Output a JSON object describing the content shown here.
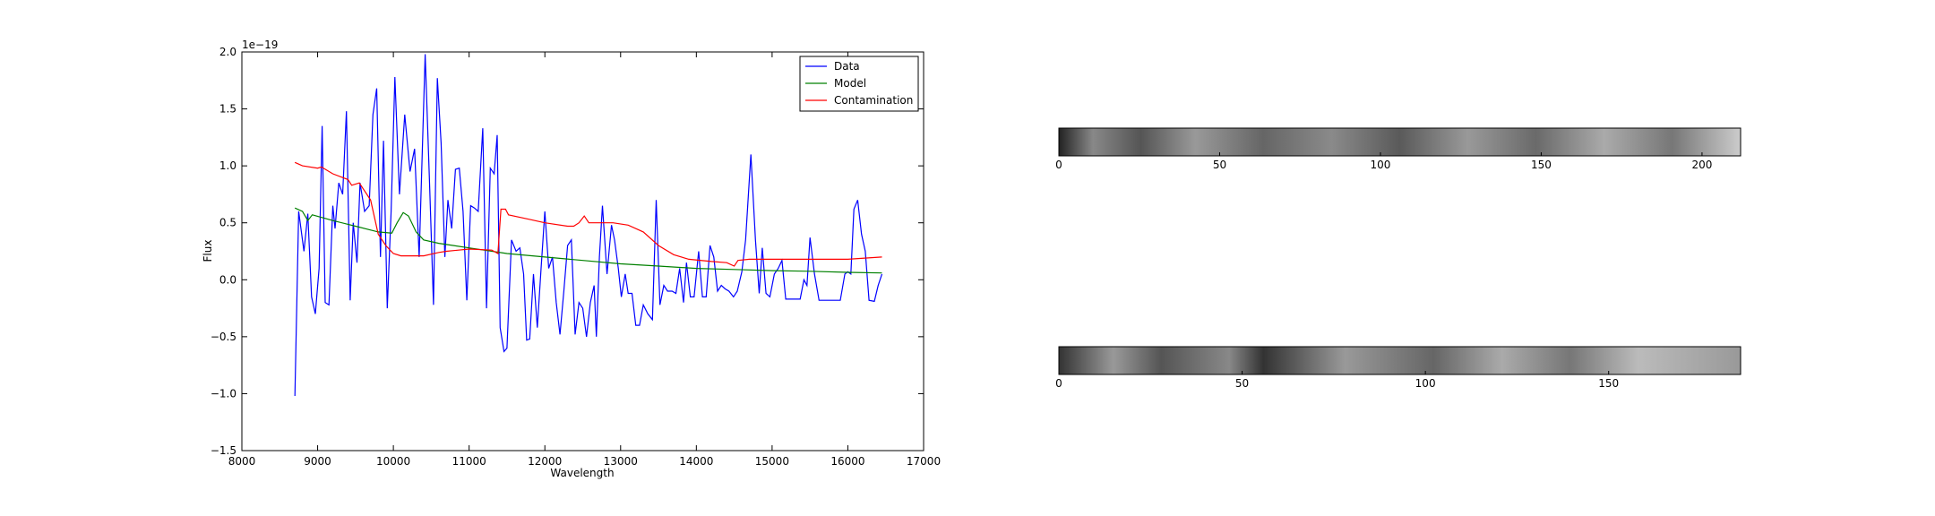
{
  "chart_data": [
    {
      "type": "line",
      "xlabel": "Wavelength",
      "ylabel": "Flux",
      "offset_label": "1e−19",
      "xlim": [
        8000,
        17000
      ],
      "xticks": [
        8000,
        9000,
        10000,
        11000,
        12000,
        13000,
        14000,
        15000,
        16000,
        17000
      ],
      "ylim": [
        -1.5,
        2.0
      ],
      "yticks": [
        {
          "value": -1.5,
          "label": "−1.5"
        },
        {
          "value": -1.0,
          "label": "−1.0"
        },
        {
          "value": -0.5,
          "label": "−0.5"
        },
        {
          "value": 0,
          "label": "0.0"
        },
        {
          "value": 0.5,
          "label": "0.5"
        },
        {
          "value": 1.0,
          "label": "1.0"
        },
        {
          "value": 1.5,
          "label": "1.5"
        },
        {
          "value": 2.0,
          "label": "2.0"
        }
      ],
      "legend": "upper right",
      "series": [
        {
          "name": "Data",
          "color": "#0000ff",
          "x": [
            8700,
            8750,
            8820,
            8870,
            8920,
            8970,
            9020,
            9060,
            9100,
            9150,
            9200,
            9230,
            9280,
            9330,
            9380,
            9430,
            9470,
            9520,
            9560,
            9620,
            9680,
            9730,
            9780,
            9830,
            9870,
            9920,
            9970,
            10020,
            10080,
            10150,
            10220,
            10280,
            10340,
            10420,
            10480,
            10530,
            10580,
            10630,
            10680,
            10720,
            10770,
            10820,
            10870,
            10920,
            10970,
            11020,
            11070,
            11120,
            11180,
            11230,
            11280,
            11330,
            11370,
            11410,
            11460,
            11500,
            11560,
            11620,
            11670,
            11720,
            11760,
            11800,
            11850,
            11900,
            11950,
            12000,
            12050,
            12100,
            12150,
            12200,
            12250,
            12300,
            12350,
            12400,
            12450,
            12500,
            12550,
            12600,
            12650,
            12680,
            12720,
            12760,
            12820,
            12880,
            12920,
            12970,
            13010,
            13060,
            13100,
            13150,
            13200,
            13250,
            13300,
            13360,
            13420,
            13470,
            13520,
            13570,
            13620,
            13680,
            13730,
            13780,
            13830,
            13870,
            13920,
            13970,
            14030,
            14080,
            14130,
            14180,
            14230,
            14280,
            14330,
            14380,
            14430,
            14490,
            14540,
            14600,
            14650,
            14720,
            14780,
            14830,
            14870,
            14920,
            14970,
            15030,
            15080,
            15130,
            15180,
            15300,
            15370,
            15420,
            15460,
            15500,
            15560,
            15620,
            15900,
            15960,
            16000,
            16040,
            16080,
            16130,
            16180,
            16230,
            16280,
            16350,
            16400,
            16450
          ],
          "values": [
            -1.02,
            0.6,
            0.25,
            0.58,
            -0.15,
            -0.3,
            0.1,
            1.35,
            -0.2,
            -0.22,
            0.65,
            0.45,
            0.85,
            0.75,
            1.48,
            -0.18,
            0.5,
            0.15,
            0.85,
            0.6,
            0.65,
            1.45,
            1.68,
            0.2,
            1.22,
            -0.25,
            0.6,
            1.78,
            0.75,
            1.45,
            0.95,
            1.15,
            0.2,
            1.98,
            0.8,
            -0.22,
            1.77,
            1.2,
            0.2,
            0.7,
            0.45,
            0.97,
            0.98,
            0.6,
            -0.18,
            0.65,
            0.63,
            0.6,
            1.33,
            -0.25,
            0.98,
            0.93,
            1.27,
            -0.42,
            -0.63,
            -0.6,
            0.35,
            0.25,
            0.28,
            0.05,
            -0.53,
            -0.52,
            0.05,
            -0.42,
            0.1,
            0.6,
            0.1,
            0.2,
            -0.2,
            -0.48,
            -0.1,
            0.3,
            0.35,
            -0.48,
            -0.2,
            -0.25,
            -0.5,
            -0.2,
            -0.05,
            -0.5,
            0.2,
            0.65,
            0.05,
            0.48,
            0.35,
            0.1,
            -0.15,
            0.05,
            -0.12,
            -0.12,
            -0.4,
            -0.4,
            -0.22,
            -0.3,
            -0.35,
            0.7,
            -0.22,
            -0.05,
            -0.1,
            -0.1,
            -0.12,
            0.1,
            -0.2,
            0.15,
            -0.15,
            -0.15,
            0.25,
            -0.15,
            -0.15,
            0.3,
            0.2,
            -0.1,
            -0.05,
            -0.08,
            -0.1,
            -0.15,
            -0.1,
            0.07,
            0.35,
            1.1,
            0.35,
            -0.12,
            0.28,
            -0.12,
            -0.15,
            0.05,
            0.1,
            0.17,
            -0.17,
            -0.17,
            -0.17,
            0.0,
            -0.05,
            0.37,
            0.05,
            -0.18,
            -0.18,
            0.05,
            0.07,
            0.05,
            0.62,
            0.7,
            0.4,
            0.25,
            -0.18,
            -0.19,
            -0.05,
            0.05
          ]
        },
        {
          "name": "Model",
          "color": "#008000",
          "x": [
            8700,
            8800,
            8870,
            8930,
            9200,
            9500,
            9800,
            9980,
            10050,
            10130,
            10200,
            10300,
            10400,
            10600,
            11000,
            11500,
            12000,
            12500,
            13000,
            13500,
            14000,
            14500,
            15000,
            15500,
            16000,
            16450
          ],
          "values": [
            0.63,
            0.6,
            0.52,
            0.57,
            0.52,
            0.47,
            0.42,
            0.41,
            0.5,
            0.59,
            0.56,
            0.42,
            0.35,
            0.32,
            0.28,
            0.23,
            0.2,
            0.17,
            0.14,
            0.12,
            0.1,
            0.09,
            0.08,
            0.075,
            0.065,
            0.06
          ]
        },
        {
          "name": "Contamination",
          "color": "#ff0000",
          "x": [
            8700,
            8800,
            9000,
            9050,
            9200,
            9400,
            9450,
            9550,
            9600,
            9700,
            9800,
            9900,
            10000,
            10100,
            10400,
            10600,
            10700,
            11000,
            11300,
            11380,
            11420,
            11480,
            11520,
            11800,
            12000,
            12300,
            12380,
            12450,
            12520,
            12580,
            12900,
            13100,
            13300,
            13500,
            13700,
            13900,
            14200,
            14400,
            14500,
            14550,
            14700,
            15500,
            16000,
            16450
          ],
          "values": [
            1.03,
            1.0,
            0.98,
            0.99,
            0.93,
            0.88,
            0.83,
            0.85,
            0.8,
            0.7,
            0.4,
            0.3,
            0.23,
            0.21,
            0.21,
            0.24,
            0.25,
            0.27,
            0.26,
            0.23,
            0.62,
            0.62,
            0.57,
            0.53,
            0.5,
            0.47,
            0.47,
            0.5,
            0.56,
            0.5,
            0.5,
            0.48,
            0.42,
            0.3,
            0.22,
            0.18,
            0.16,
            0.15,
            0.12,
            0.17,
            0.18,
            0.18,
            0.18,
            0.2
          ]
        }
      ]
    },
    {
      "type": "image",
      "xlim": [
        0,
        212
      ],
      "xticks": [
        0,
        50,
        100,
        150,
        200
      ]
    },
    {
      "type": "image",
      "xlim": [
        0,
        186
      ],
      "xticks": [
        0,
        50,
        100,
        150
      ]
    }
  ]
}
